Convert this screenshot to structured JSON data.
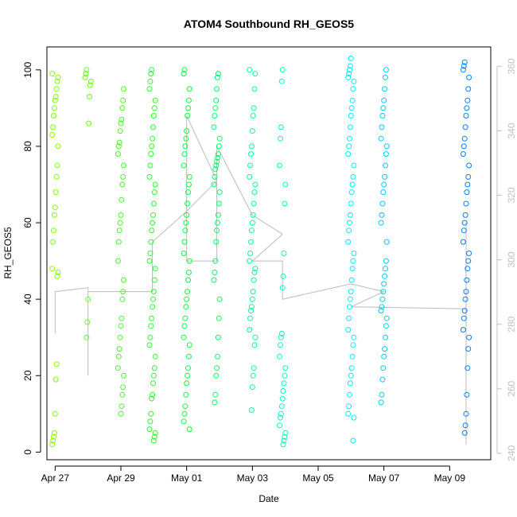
{
  "chart_data": {
    "type": "scatter",
    "title": "ATOM4 Southbound RH_GEOS5",
    "xlabel": "Date",
    "ylabel": "RH_GEOS5",
    "x_ticks": [
      "Apr 27",
      "Apr 29",
      "May 01",
      "May 03",
      "May 05",
      "May 07",
      "May 09"
    ],
    "y_ticks": [
      0,
      20,
      40,
      60,
      80,
      100
    ],
    "y_right_ticks": [
      240,
      260,
      280,
      300,
      320,
      340,
      360
    ],
    "xlim": [
      "2018-04-26 18:00",
      "2018-05-10 06:00"
    ],
    "ylim": [
      -2,
      106
    ],
    "y_right_lim": [
      238,
      366
    ],
    "grid": false,
    "color_scale": [
      "#7fff00",
      "#00ff40",
      "#00ffff",
      "#0080ff"
    ],
    "series": [
      {
        "values": [
          {
            "date": "2018-04-27 00:00",
            "rh": [
              2,
              3,
              4,
              5,
              10,
              19,
              23,
              46,
              47,
              48,
              55,
              58,
              62,
              64,
              68,
              72,
              75,
              80,
              83,
              85,
              88,
              90,
              92,
              93,
              95,
              97,
              98,
              99
            ]
          },
          {
            "date": "2018-04-28 00:00",
            "rh": [
              30,
              34,
              40,
              86,
              93,
              96,
              97,
              98,
              99,
              100
            ]
          },
          {
            "date": "2018-04-29 00:00",
            "rh": [
              10,
              12,
              15,
              17,
              20,
              22,
              25,
              27,
              30,
              33,
              35,
              40,
              42,
              45,
              50,
              55,
              58,
              60,
              62,
              66,
              70,
              72,
              75,
              78,
              80,
              81,
              84,
              86,
              87,
              90,
              92,
              95
            ]
          },
          {
            "date": "2018-04-29 23:00",
            "rh": [
              3,
              4,
              5,
              6,
              8,
              10,
              14,
              15,
              18,
              20,
              22,
              25,
              28,
              30,
              33,
              35,
              38,
              40,
              42,
              45,
              48,
              50,
              52,
              55,
              58,
              60,
              62,
              65,
              68,
              70,
              72,
              75,
              78,
              80,
              82,
              85,
              88,
              90,
              92,
              95,
              97,
              99,
              100
            ]
          },
          {
            "date": "2018-05-01 00:00",
            "rh": [
              6,
              8,
              10,
              12,
              15,
              18,
              20,
              22,
              25,
              28,
              30,
              33,
              35,
              38,
              40,
              42,
              45,
              47,
              50,
              52,
              55,
              58,
              60,
              62,
              65,
              68,
              70,
              72,
              75,
              78,
              80,
              82,
              84,
              88,
              90,
              92,
              95,
              99,
              100
            ]
          },
          {
            "date": "2018-05-01 22:00",
            "rh": [
              13,
              15,
              20,
              22,
              25,
              30,
              35,
              40,
              45,
              47,
              50,
              55,
              58,
              60,
              62,
              65,
              68,
              70,
              72,
              74,
              75,
              76,
              77,
              78,
              80,
              82,
              85,
              88,
              90,
              92,
              95,
              98,
              99
            ]
          },
          {
            "date": "2018-05-03 00:00",
            "rh": [
              11,
              17,
              20,
              22,
              28,
              30,
              32,
              35,
              37,
              38,
              40,
              42,
              45,
              47,
              48,
              50,
              52,
              55,
              58,
              60,
              62,
              65,
              68,
              70,
              72,
              75,
              78,
              80,
              84,
              88,
              90,
              95,
              99,
              100
            ]
          },
          {
            "date": "2018-05-03 22:00",
            "rh": [
              2,
              3,
              4,
              5,
              7,
              9,
              10,
              12,
              14,
              16,
              18,
              20,
              22,
              25,
              28,
              30,
              31,
              43,
              46,
              52,
              65,
              70,
              75,
              82,
              85,
              97,
              100
            ]
          },
          {
            "date": "2018-05-06 00:00",
            "rh": [
              3,
              9,
              10,
              12,
              15,
              18,
              20,
              22,
              25,
              28,
              30,
              32,
              35,
              38,
              40,
              42,
              45,
              48,
              50,
              52,
              55,
              58,
              60,
              62,
              65,
              68,
              70,
              72,
              75,
              78,
              80,
              82,
              85,
              88,
              90,
              92,
              95,
              97,
              98,
              99,
              100,
              101,
              103
            ]
          },
          {
            "date": "2018-05-07 00:00",
            "rh": [
              13,
              15,
              19,
              22,
              25,
              27,
              30,
              33,
              35,
              37,
              38,
              40,
              42,
              44,
              46,
              48,
              50,
              55,
              60,
              62,
              65,
              68,
              70,
              72,
              75,
              78,
              80,
              82,
              85,
              88,
              90,
              92,
              95,
              98,
              100
            ]
          },
          {
            "date": "2018-05-09 12:00",
            "rh": [
              5,
              7,
              10,
              15,
              22,
              27,
              30,
              32,
              35,
              37,
              40,
              42,
              45,
              48,
              50,
              52,
              55,
              58,
              60,
              62,
              65,
              68,
              70,
              72,
              75,
              78,
              80,
              82,
              85,
              88,
              90,
              92,
              95,
              98,
              100,
              101,
              102
            ]
          }
        ]
      }
    ],
    "trace_line": [
      [
        "2018-04-27 00:00",
        31
      ],
      [
        "2018-04-27 00:00",
        42
      ],
      [
        "2018-04-28 00:00",
        43
      ],
      [
        "2018-04-28 00:00",
        20
      ],
      [
        "2018-04-28 00:00",
        42
      ],
      [
        "2018-04-29 00:00",
        42
      ],
      [
        "2018-04-29 23:00",
        42
      ],
      [
        "2018-04-29 23:00",
        55
      ],
      [
        "2018-05-01 00:00",
        63
      ],
      [
        "2018-05-01 22:00",
        71
      ],
      [
        "2018-05-01 00:00",
        88
      ],
      [
        "2018-05-01 00:00",
        50
      ],
      [
        "2018-05-01 22:00",
        50
      ],
      [
        "2018-05-01 22:00",
        80
      ],
      [
        "2018-05-03 00:00",
        62
      ],
      [
        "2018-05-03 22:00",
        57
      ],
      [
        "2018-05-03 00:00",
        50
      ],
      [
        "2018-05-03 22:00",
        50
      ],
      [
        "2018-05-03 22:00",
        40
      ],
      [
        "2018-05-06 00:00",
        44
      ],
      [
        "2018-05-07 00:00",
        42
      ],
      [
        "2018-05-06 00:00",
        38
      ],
      [
        "2018-05-09 12:00",
        37.5
      ],
      [
        "2018-05-09 12:00",
        2
      ],
      [
        "2018-05-09 12:00",
        60
      ]
    ]
  }
}
